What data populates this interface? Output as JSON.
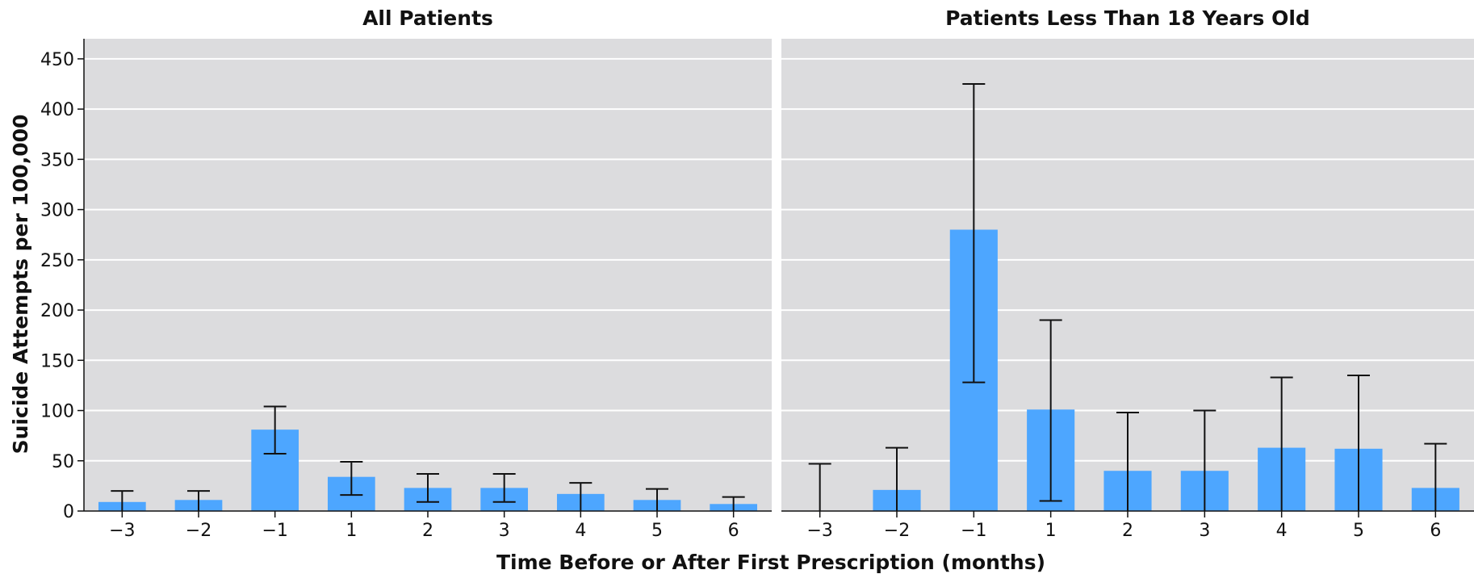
{
  "chart_data": [
    {
      "type": "bar",
      "title": "All Patients",
      "categories": [
        "−3",
        "−2",
        "−1",
        "1",
        "2",
        "3",
        "4",
        "5",
        "6"
      ],
      "values": [
        9,
        11,
        81,
        34,
        23,
        23,
        17,
        11,
        7
      ],
      "error_low": [
        0,
        0,
        57,
        16,
        9,
        9,
        0,
        0,
        0
      ],
      "error_high": [
        20,
        20,
        104,
        49,
        37,
        37,
        28,
        22,
        14
      ],
      "ylim": [
        0,
        470
      ],
      "yticks": [
        0,
        50,
        100,
        150,
        200,
        250,
        300,
        350,
        400,
        450
      ],
      "color": "#4da6ff",
      "grid": true
    },
    {
      "type": "bar",
      "title": "Patients Less Than 18 Years Old",
      "categories": [
        "−3",
        "−2",
        "−1",
        "1",
        "2",
        "3",
        "4",
        "5",
        "6"
      ],
      "values": [
        0,
        21,
        280,
        101,
        40,
        40,
        63,
        62,
        23
      ],
      "error_low": [
        0,
        0,
        128,
        10,
        0,
        0,
        0,
        0,
        0
      ],
      "error_high": [
        47,
        63,
        425,
        190,
        98,
        100,
        133,
        135,
        67
      ],
      "ylim": [
        0,
        470
      ],
      "color": "#4da6ff",
      "grid": true
    }
  ],
  "axes": {
    "ylabel": "Suicide Attempts per 100,000",
    "xlabel": "Time Before or After First Prescription (months)"
  }
}
